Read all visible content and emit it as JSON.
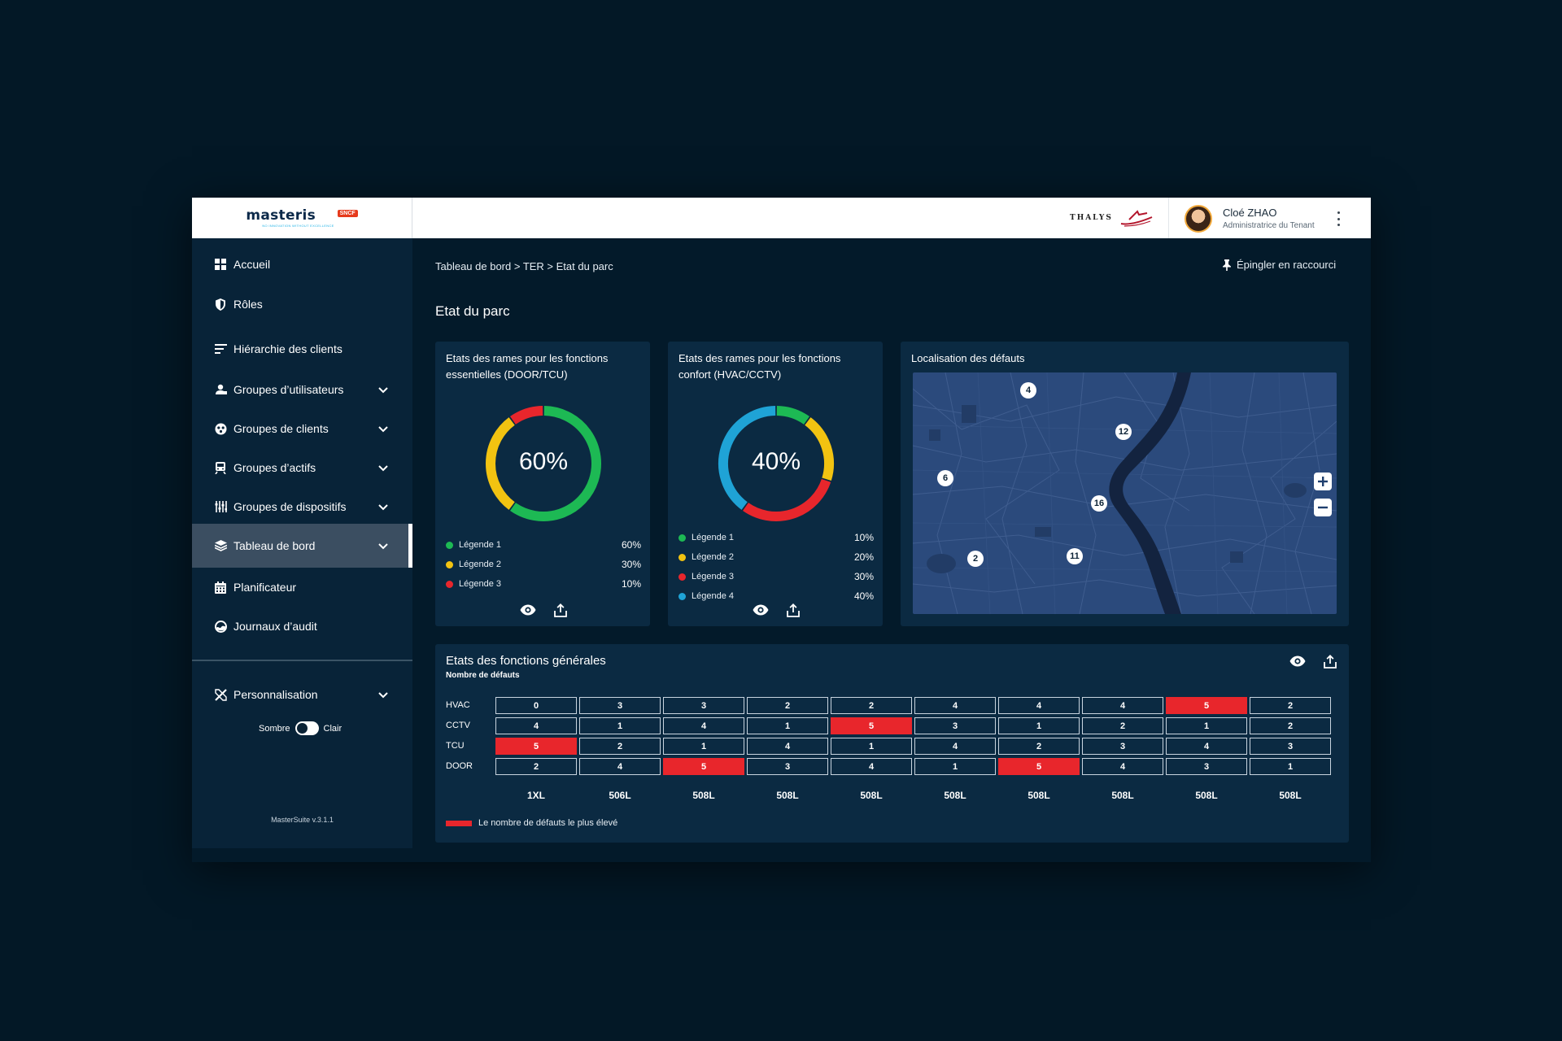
{
  "header": {
    "brand_name": "masteris",
    "brand_tagline": "NO INNOVATION WITHOUT EXCELLENCE",
    "brand_badge": "SNCF",
    "partner_logo": "THALYS",
    "user_name": "Cloé ZHAO",
    "user_role": "Administratrice du Tenant"
  },
  "sidebar": {
    "items": [
      {
        "label": "Accueil",
        "icon": "grid-icon"
      },
      {
        "label": "Rôles",
        "icon": "shield-icon"
      },
      {
        "label": "Hiérarchie des clients",
        "icon": "hierarchy-icon"
      },
      {
        "label": "Groupes d’utilisateurs",
        "icon": "users-icon",
        "expandable": true
      },
      {
        "label": "Groupes de clients",
        "icon": "clients-icon",
        "expandable": true
      },
      {
        "label": "Groupes d’actifs",
        "icon": "train-icon",
        "expandable": true
      },
      {
        "label": "Groupes de dispositifs",
        "icon": "sliders-icon",
        "expandable": true
      },
      {
        "label": "Tableau de bord",
        "icon": "layers-icon",
        "expandable": true,
        "active": true
      },
      {
        "label": "Planificateur",
        "icon": "calendar-icon"
      },
      {
        "label": "Journaux d’audit",
        "icon": "audit-icon"
      }
    ],
    "personalisation": "Personnalisation",
    "theme": {
      "dark_label": "Sombre",
      "light_label": "Clair"
    },
    "version": "MasterSuite v.3.1.1"
  },
  "main": {
    "breadcrumb": "Tableau de bord > TER > Etat du parc",
    "pin_label": "Épingler en raccourci",
    "page_title": "Etat du parc"
  },
  "cards": {
    "essentials": {
      "title_line1": "Etats des rames pour les fonctions",
      "title_line2": "essentielles (DOOR/TCU)",
      "center_value": "60%",
      "legend": [
        {
          "label": "Légende 1",
          "value": "60%",
          "color": "#1db954"
        },
        {
          "label": "Légende 2",
          "value": "30%",
          "color": "#f2c311"
        },
        {
          "label": "Légende 3",
          "value": "10%",
          "color": "#e8262c"
        }
      ]
    },
    "comfort": {
      "title_line1": "Etats des rames pour les fonctions",
      "title_line2": "confort (HVAC/CCTV)",
      "center_value": "40%",
      "legend": [
        {
          "label": "Légende 1",
          "value": "10%",
          "color": "#1db954"
        },
        {
          "label": "Légende 2",
          "value": "20%",
          "color": "#f2c311"
        },
        {
          "label": "Légende 3",
          "value": "30%",
          "color": "#e8262c"
        },
        {
          "label": "Légende 4",
          "value": "40%",
          "color": "#1fa3d6"
        }
      ]
    },
    "map": {
      "title": "Localisation des défauts",
      "markers": [
        "4",
        "12",
        "6",
        "16",
        "2",
        "11"
      ]
    }
  },
  "chart_data": [
    {
      "type": "pie",
      "labels": [
        "Légende 1",
        "Légende 2",
        "Légende 3"
      ],
      "values": [
        60,
        30,
        10
      ],
      "colors": [
        "#1db954",
        "#f2c311",
        "#e8262c"
      ]
    },
    {
      "type": "pie",
      "labels": [
        "Légende 1",
        "Légende 2",
        "Légende 3",
        "Légende 4"
      ],
      "values": [
        10,
        20,
        30,
        40
      ],
      "colors": [
        "#1db954",
        "#f2c311",
        "#e8262c",
        "#1fa3d6"
      ]
    },
    {
      "type": "heatmap",
      "title": "Etats des fonctions générales",
      "subtitle": "Nombre de défauts",
      "rows": [
        "HVAC",
        "CCTV",
        "TCU",
        "DOOR"
      ],
      "columns": [
        "1XL",
        "506L",
        "508L",
        "508L",
        "508L",
        "508L",
        "508L",
        "508L",
        "508L",
        "508L"
      ],
      "values": [
        [
          0,
          3,
          3,
          2,
          2,
          4,
          4,
          4,
          5,
          2
        ],
        [
          4,
          1,
          4,
          1,
          5,
          3,
          1,
          2,
          1,
          2
        ],
        [
          5,
          2,
          1,
          4,
          1,
          4,
          2,
          3,
          4,
          3
        ],
        [
          2,
          4,
          5,
          3,
          4,
          1,
          5,
          4,
          3,
          1
        ]
      ],
      "highlight": [
        [
          0,
          8
        ],
        [
          1,
          4
        ],
        [
          2,
          0
        ],
        [
          3,
          2
        ],
        [
          3,
          6
        ]
      ],
      "highlight_color": "#e8262c",
      "legend": "Le nombre de défauts le plus élevé"
    }
  ]
}
